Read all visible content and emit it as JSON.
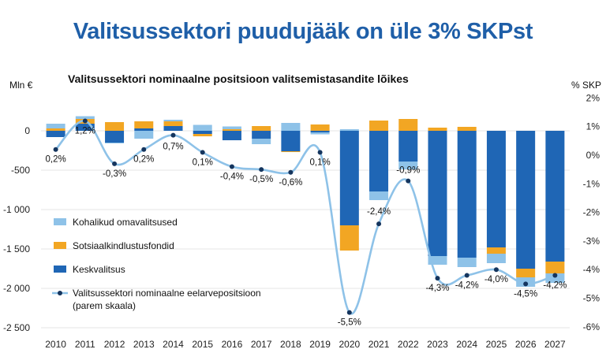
{
  "page": {
    "title": "Valitsussektori puudujääk on üle 3% SKPst"
  },
  "chart_data": {
    "type": "bar",
    "title": "Valitsussektori nominaalne positsioon valitsemistasandite lõikes",
    "ylabel_left": "Mln €",
    "ylabel_right": "% SKP",
    "categories": [
      "2010",
      "2011",
      "2012",
      "2013",
      "2014",
      "2015",
      "2016",
      "2017",
      "2018",
      "2019",
      "2020",
      "2021",
      "2022",
      "2023",
      "2024",
      "2025",
      "2026",
      "2027"
    ],
    "ylim_left": [
      -2500,
      300
    ],
    "yticks_left": [
      0,
      -500,
      -1000,
      -1500,
      -2000,
      -2500
    ],
    "yticks_left_labels": [
      "0",
      "-500",
      "-1 000",
      "-1 500",
      "-2 000",
      "-2 500"
    ],
    "ylim_right": [
      -6,
      2.5
    ],
    "yticks_right": [
      2,
      1,
      0,
      -1,
      -2,
      -3,
      -4,
      -5,
      -6
    ],
    "yticks_right_labels": [
      "2%",
      "1%",
      "0%",
      "-1%",
      "-2%",
      "-3%",
      "-4%",
      "-5%",
      "-6%"
    ],
    "series": [
      {
        "name": "Keskvalitsus",
        "color": "#1f66b5",
        "values": [
          -80,
          90,
          -150,
          30,
          60,
          -40,
          -120,
          -100,
          -260,
          -20,
          -1200,
          -770,
          -390,
          -1590,
          -1610,
          -1480,
          -1750,
          -1660
        ]
      },
      {
        "name": "Sotsiaalkindlustusfondid",
        "color": "#f2a623",
        "values": [
          30,
          60,
          110,
          90,
          60,
          -30,
          20,
          60,
          -10,
          80,
          -320,
          130,
          150,
          40,
          50,
          -80,
          -110,
          -150
        ]
      },
      {
        "name": "Kohalikud omavalitsused",
        "color": "#8ec2e8",
        "values": [
          60,
          35,
          -10,
          -100,
          20,
          75,
          35,
          -70,
          100,
          -25,
          20,
          -110,
          -100,
          -110,
          -120,
          -120,
          -120,
          -120
        ]
      }
    ],
    "line": {
      "name": "Valitsussektori nominaalne eelarvepositsioon\n(parem skaala)",
      "color": "#8ec2e8",
      "values": [
        0.2,
        1.2,
        -0.3,
        0.2,
        0.7,
        0.1,
        -0.4,
        -0.5,
        -0.6,
        0.1,
        -5.5,
        -2.4,
        -0.9,
        -4.3,
        -4.2,
        -4.0,
        -4.5,
        -4.2
      ],
      "labels": [
        "0,2%",
        "1,2%",
        "-0,3%",
        "0,2%",
        "0,7%",
        "0,1%",
        "-0,4%",
        "-0,5%",
        "-0,6%",
        "0,1%",
        "-5,5%",
        "-2,4%",
        "-0,9%",
        "-4,3%",
        "-4,2%",
        "-4,0%",
        "-4,5%",
        "-4,2%"
      ]
    },
    "legend": {
      "placement": "bottom-left",
      "items": [
        {
          "label": "Kohalikud omavalitsused",
          "color": "#8ec2e8",
          "kind": "box"
        },
        {
          "label": "Sotsiaalkindlustusfondid",
          "color": "#f2a623",
          "kind": "box"
        },
        {
          "label": "Keskvalitsus",
          "color": "#1f66b5",
          "kind": "box"
        },
        {
          "label": "Valitsussektori nominaalne eelarvepositsioon",
          "label2": "(parem skaala)",
          "color": "#8ec2e8",
          "kind": "line"
        }
      ]
    }
  }
}
